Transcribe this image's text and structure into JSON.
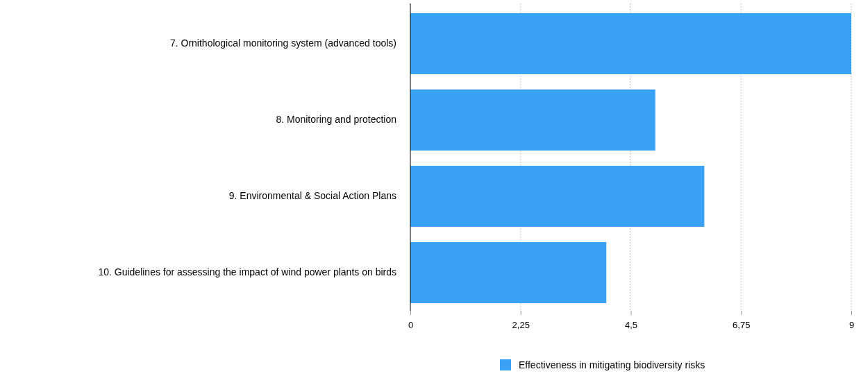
{
  "chart_data": {
    "type": "bar",
    "orientation": "horizontal",
    "categories": [
      "7. Ornithological monitoring system (advanced tools)",
      "8. Monitoring and protection",
      "9. Environmental & Social Action Plans",
      "10.  Guidelines for assessing the impact of wind power plants on birds"
    ],
    "series": [
      {
        "name": "Effectiveness in mitigating biodiversity risks",
        "color": "#39a2f5",
        "values": [
          9,
          5,
          6,
          4
        ]
      }
    ],
    "xlim": [
      0,
      9
    ],
    "xticks": [
      0,
      {
        "value": 2.25,
        "label": "2,25"
      },
      {
        "value": 4.5,
        "label": "4,5"
      },
      {
        "value": 6.75,
        "label": "6,75"
      },
      9
    ],
    "grid": "x",
    "legend": "bottom"
  }
}
